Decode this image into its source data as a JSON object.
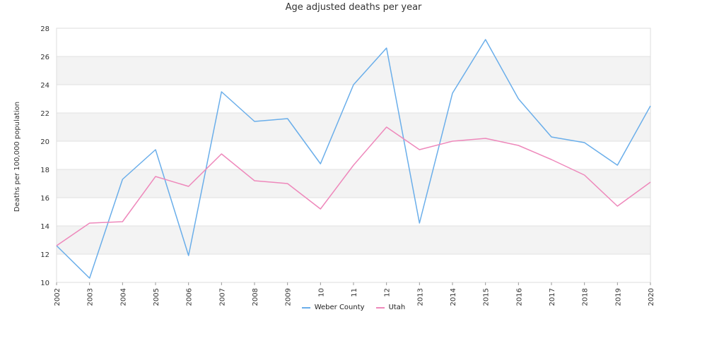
{
  "chart_data": {
    "type": "line",
    "title": "Age adjusted deaths per year",
    "xlabel": "",
    "ylabel": "Deaths per 100,000 population",
    "x": [
      "2002",
      "2003",
      "2004",
      "2005",
      "2006",
      "2007",
      "2008",
      "2009",
      "10",
      "11",
      "12",
      "2013",
      "2014",
      "2015",
      "2016",
      "2017",
      "2018",
      "2019",
      "2020"
    ],
    "ylim": [
      10,
      28
    ],
    "yticks": [
      10,
      12,
      14,
      16,
      18,
      20,
      22,
      24,
      26,
      28
    ],
    "grid": true,
    "banded_background": true,
    "legend_position": "bottom",
    "series": [
      {
        "name": "Weber County",
        "color": "#6aaeea",
        "values": [
          12.6,
          10.3,
          17.3,
          19.4,
          11.9,
          23.5,
          21.4,
          21.6,
          18.4,
          24.0,
          26.6,
          14.2,
          23.4,
          27.2,
          23.0,
          20.3,
          19.9,
          18.3,
          22.5
        ]
      },
      {
        "name": "Utah",
        "color": "#ee88bb",
        "values": [
          12.6,
          14.2,
          14.3,
          17.5,
          16.8,
          19.1,
          17.2,
          17.0,
          15.2,
          18.3,
          21.0,
          19.4,
          20.0,
          20.2,
          19.7,
          18.7,
          17.6,
          15.4,
          17.1
        ]
      }
    ]
  }
}
